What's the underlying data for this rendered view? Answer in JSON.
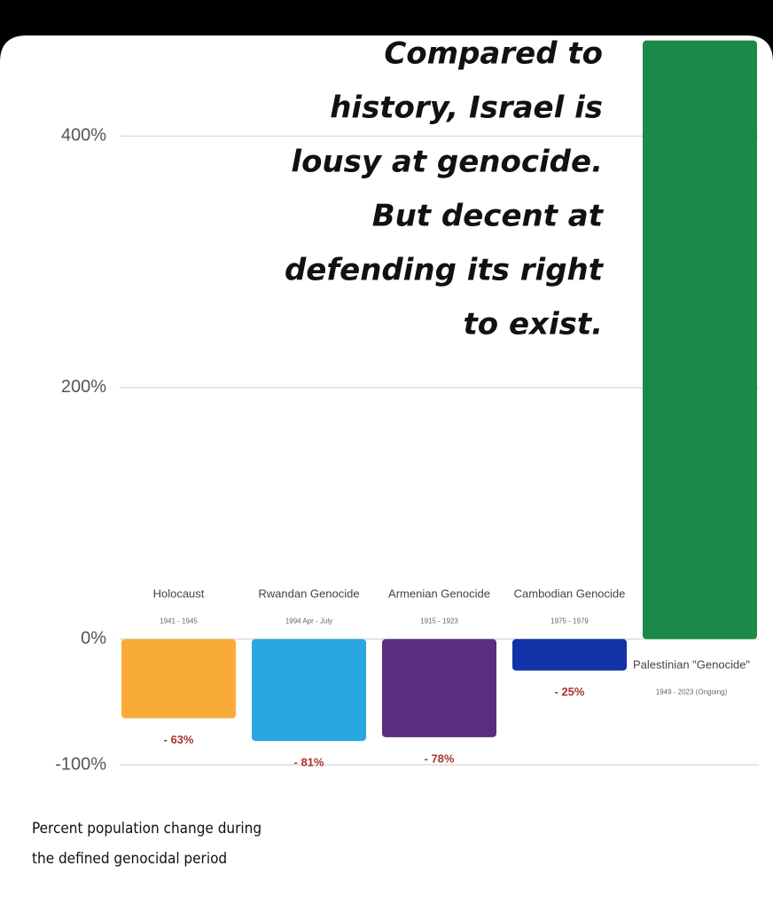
{
  "chart_data": {
    "type": "bar",
    "categories": [
      "Holocaust",
      "Rwandan Genocide",
      "Armenian Genocide",
      "Cambodian Genocide",
      "Palestinian \"Genocide\""
    ],
    "periods": [
      "1941 - 1945",
      "1994 Apr - July",
      "1915 - 1923",
      "1975 - 1979",
      "1949 - 2023 (Ongoing)"
    ],
    "values": [
      -63,
      -81,
      -78,
      -25,
      476
    ],
    "value_labels": [
      "- 63%",
      "- 81%",
      "- 78%",
      "- 25%",
      null
    ],
    "colors": [
      "#f9ab3a",
      "#2aa7e0",
      "#5b2d7e",
      "#1232a8",
      "#1b8a48"
    ],
    "ylim": [
      -100,
      480
    ],
    "yticks": [
      {
        "value": -100,
        "label": "-100%"
      },
      {
        "value": 0,
        "label": "0%"
      },
      {
        "value": 200,
        "label": "200%"
      },
      {
        "value": 400,
        "label": "400%"
      }
    ],
    "grid": true,
    "annotation": [
      "Compared to",
      "history, Israel is",
      "lousy at genocide.",
      "But decent at",
      "defending its right",
      "to exist."
    ],
    "caption": [
      "Percent population change during",
      "the defined genocidal period"
    ]
  }
}
